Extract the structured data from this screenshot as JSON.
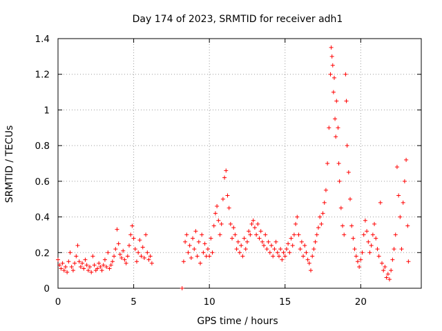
{
  "chart_data": {
    "type": "scatter",
    "title": "Day 174 of 2023, SRMTID for receiver adh1",
    "xlabel": "GPS time / hours",
    "ylabel": "SRMTID / TECUs",
    "xlim": [
      0,
      24
    ],
    "ylim": [
      0,
      1.4
    ],
    "xticks": [
      0,
      5,
      10,
      15,
      20
    ],
    "yticks": [
      0,
      0.2,
      0.4,
      0.6,
      0.8,
      1,
      1.2,
      1.4
    ],
    "xtick_labels": [
      "0",
      "5",
      "10",
      "15",
      "20"
    ],
    "ytick_labels": [
      "0",
      "0.2",
      "0.4",
      "0.6",
      "0.8",
      "1",
      "1.2",
      "1.4"
    ],
    "grid": true,
    "marker": "+",
    "marker_color": "#ff0000",
    "series": [
      {
        "name": "adh1",
        "points": [
          [
            0.0,
            0.16
          ],
          [
            0.1,
            0.13
          ],
          [
            0.2,
            0.11
          ],
          [
            0.3,
            0.14
          ],
          [
            0.4,
            0.1
          ],
          [
            0.5,
            0.12
          ],
          [
            0.6,
            0.09
          ],
          [
            0.7,
            0.15
          ],
          [
            0.8,
            0.2
          ],
          [
            0.9,
            0.12
          ],
          [
            1.0,
            0.1
          ],
          [
            1.1,
            0.14
          ],
          [
            1.2,
            0.18
          ],
          [
            1.3,
            0.24
          ],
          [
            1.4,
            0.15
          ],
          [
            1.5,
            0.12
          ],
          [
            1.6,
            0.14
          ],
          [
            1.7,
            0.11
          ],
          [
            1.8,
            0.16
          ],
          [
            1.9,
            0.13
          ],
          [
            2.0,
            0.1
          ],
          [
            2.1,
            0.12
          ],
          [
            2.2,
            0.09
          ],
          [
            2.3,
            0.18
          ],
          [
            2.4,
            0.13
          ],
          [
            2.5,
            0.1
          ],
          [
            2.6,
            0.11
          ],
          [
            2.7,
            0.14
          ],
          [
            2.8,
            0.12
          ],
          [
            2.9,
            0.1
          ],
          [
            3.0,
            0.13
          ],
          [
            3.1,
            0.16
          ],
          [
            3.2,
            0.12
          ],
          [
            3.3,
            0.2
          ],
          [
            3.4,
            0.11
          ],
          [
            3.5,
            0.13
          ],
          [
            3.6,
            0.15
          ],
          [
            3.7,
            0.18
          ],
          [
            3.8,
            0.22
          ],
          [
            3.9,
            0.33
          ],
          [
            4.0,
            0.25
          ],
          [
            4.1,
            0.19
          ],
          [
            4.2,
            0.17
          ],
          [
            4.3,
            0.21
          ],
          [
            4.4,
            0.16
          ],
          [
            4.5,
            0.14
          ],
          [
            4.6,
            0.18
          ],
          [
            4.7,
            0.24
          ],
          [
            4.8,
            0.3
          ],
          [
            4.9,
            0.35
          ],
          [
            5.0,
            0.28
          ],
          [
            5.1,
            0.22
          ],
          [
            5.2,
            0.15
          ],
          [
            5.3,
            0.2
          ],
          [
            5.4,
            0.27
          ],
          [
            5.5,
            0.18
          ],
          [
            5.6,
            0.23
          ],
          [
            5.7,
            0.17
          ],
          [
            5.8,
            0.3
          ],
          [
            5.9,
            0.2
          ],
          [
            6.0,
            0.16
          ],
          [
            6.1,
            0.18
          ],
          [
            6.2,
            0.14
          ],
          [
            8.2,
            0.0
          ],
          [
            8.3,
            0.15
          ],
          [
            8.4,
            0.26
          ],
          [
            8.5,
            0.3
          ],
          [
            8.6,
            0.2
          ],
          [
            8.7,
            0.24
          ],
          [
            8.8,
            0.17
          ],
          [
            8.9,
            0.28
          ],
          [
            9.0,
            0.22
          ],
          [
            9.1,
            0.32
          ],
          [
            9.2,
            0.18
          ],
          [
            9.3,
            0.26
          ],
          [
            9.4,
            0.14
          ],
          [
            9.5,
            0.3
          ],
          [
            9.6,
            0.2
          ],
          [
            9.7,
            0.25
          ],
          [
            9.8,
            0.18
          ],
          [
            9.9,
            0.22
          ],
          [
            10.0,
            0.18
          ],
          [
            10.1,
            0.28
          ],
          [
            10.2,
            0.2
          ],
          [
            10.3,
            0.35
          ],
          [
            10.4,
            0.42
          ],
          [
            10.5,
            0.46
          ],
          [
            10.6,
            0.38
          ],
          [
            10.7,
            0.3
          ],
          [
            10.8,
            0.36
          ],
          [
            10.9,
            0.5
          ],
          [
            11.0,
            0.62
          ],
          [
            11.1,
            0.66
          ],
          [
            11.2,
            0.52
          ],
          [
            11.3,
            0.45
          ],
          [
            11.4,
            0.36
          ],
          [
            11.5,
            0.28
          ],
          [
            11.6,
            0.34
          ],
          [
            11.7,
            0.3
          ],
          [
            11.8,
            0.22
          ],
          [
            11.9,
            0.26
          ],
          [
            12.0,
            0.2
          ],
          [
            12.1,
            0.24
          ],
          [
            12.2,
            0.18
          ],
          [
            12.3,
            0.28
          ],
          [
            12.4,
            0.22
          ],
          [
            12.5,
            0.26
          ],
          [
            12.6,
            0.32
          ],
          [
            12.7,
            0.3
          ],
          [
            12.8,
            0.36
          ],
          [
            12.9,
            0.38
          ],
          [
            13.0,
            0.34
          ],
          [
            13.1,
            0.3
          ],
          [
            13.2,
            0.36
          ],
          [
            13.3,
            0.28
          ],
          [
            13.4,
            0.32
          ],
          [
            13.5,
            0.26
          ],
          [
            13.6,
            0.24
          ],
          [
            13.7,
            0.3
          ],
          [
            13.8,
            0.22
          ],
          [
            13.9,
            0.26
          ],
          [
            14.0,
            0.2
          ],
          [
            14.1,
            0.24
          ],
          [
            14.2,
            0.18
          ],
          [
            14.3,
            0.22
          ],
          [
            14.4,
            0.26
          ],
          [
            14.5,
            0.2
          ],
          [
            14.6,
            0.18
          ],
          [
            14.7,
            0.22
          ],
          [
            14.8,
            0.16
          ],
          [
            14.9,
            0.2
          ],
          [
            15.0,
            0.18
          ],
          [
            15.1,
            0.22
          ],
          [
            15.2,
            0.25
          ],
          [
            15.3,
            0.2
          ],
          [
            15.4,
            0.28
          ],
          [
            15.5,
            0.24
          ],
          [
            15.6,
            0.3
          ],
          [
            15.7,
            0.36
          ],
          [
            15.8,
            0.4
          ],
          [
            15.9,
            0.3
          ],
          [
            16.0,
            0.22
          ],
          [
            16.1,
            0.26
          ],
          [
            16.2,
            0.18
          ],
          [
            16.3,
            0.24
          ],
          [
            16.4,
            0.2
          ],
          [
            16.5,
            0.16
          ],
          [
            16.6,
            0.14
          ],
          [
            16.7,
            0.1
          ],
          [
            16.8,
            0.18
          ],
          [
            16.9,
            0.22
          ],
          [
            17.0,
            0.26
          ],
          [
            17.1,
            0.3
          ],
          [
            17.2,
            0.34
          ],
          [
            17.3,
            0.4
          ],
          [
            17.4,
            0.36
          ],
          [
            17.5,
            0.42
          ],
          [
            17.6,
            0.48
          ],
          [
            17.7,
            0.55
          ],
          [
            17.8,
            0.7
          ],
          [
            17.9,
            0.9
          ],
          [
            18.0,
            1.2
          ],
          [
            18.05,
            1.35
          ],
          [
            18.1,
            1.3
          ],
          [
            18.15,
            1.25
          ],
          [
            18.2,
            1.1
          ],
          [
            18.25,
            1.18
          ],
          [
            18.3,
            0.95
          ],
          [
            18.35,
            0.85
          ],
          [
            18.4,
            1.05
          ],
          [
            18.5,
            0.9
          ],
          [
            18.55,
            0.7
          ],
          [
            18.6,
            0.6
          ],
          [
            18.7,
            0.45
          ],
          [
            18.8,
            0.35
          ],
          [
            18.9,
            0.3
          ],
          [
            19.0,
            1.2
          ],
          [
            19.05,
            1.05
          ],
          [
            19.1,
            0.8
          ],
          [
            19.2,
            0.65
          ],
          [
            19.3,
            0.5
          ],
          [
            19.4,
            0.35
          ],
          [
            19.5,
            0.28
          ],
          [
            19.6,
            0.22
          ],
          [
            19.7,
            0.18
          ],
          [
            19.8,
            0.15
          ],
          [
            19.9,
            0.12
          ],
          [
            20.0,
            0.16
          ],
          [
            20.1,
            0.2
          ],
          [
            20.2,
            0.3
          ],
          [
            20.3,
            0.38
          ],
          [
            20.4,
            0.32
          ],
          [
            20.5,
            0.26
          ],
          [
            20.6,
            0.2
          ],
          [
            20.7,
            0.24
          ],
          [
            20.8,
            0.3
          ],
          [
            20.9,
            0.36
          ],
          [
            21.0,
            0.28
          ],
          [
            21.1,
            0.22
          ],
          [
            21.2,
            0.18
          ],
          [
            21.3,
            0.48
          ],
          [
            21.4,
            0.14
          ],
          [
            21.5,
            0.1
          ],
          [
            21.6,
            0.12
          ],
          [
            21.7,
            0.06
          ],
          [
            21.8,
            0.08
          ],
          [
            21.9,
            0.05
          ],
          [
            22.0,
            0.1
          ],
          [
            22.1,
            0.16
          ],
          [
            22.2,
            0.22
          ],
          [
            22.3,
            0.3
          ],
          [
            22.4,
            0.68
          ],
          [
            22.5,
            0.52
          ],
          [
            22.6,
            0.4
          ],
          [
            22.7,
            0.22
          ],
          [
            22.8,
            0.48
          ],
          [
            22.9,
            0.6
          ],
          [
            23.0,
            0.72
          ],
          [
            23.1,
            0.35
          ],
          [
            23.15,
            0.15
          ]
        ]
      }
    ]
  }
}
